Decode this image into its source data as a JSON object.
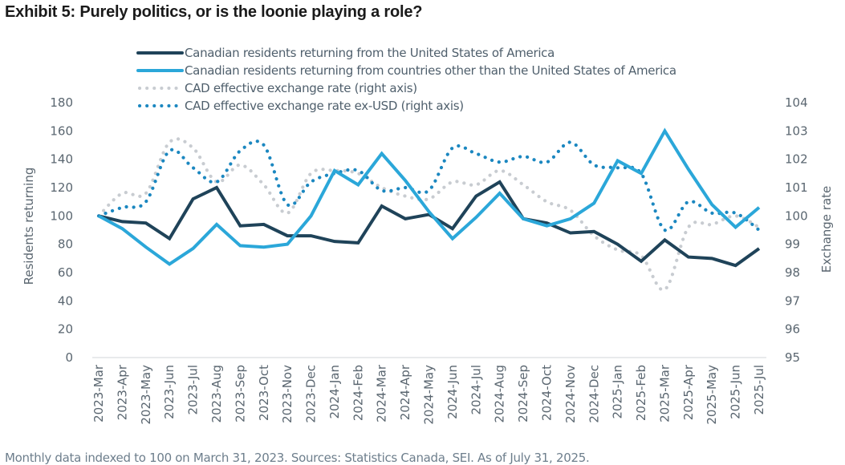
{
  "title": "Exhibit 5: Purely politics, or is the loonie playing a role?",
  "footer": "Monthly data indexed to 100 on March 31, 2023. Sources: Statistics Canada, SEI. As of July 31, 2025.",
  "chart_data": {
    "type": "line",
    "title": "Exhibit 5: Purely politics, or is the loonie playing a role?",
    "xlabel": "",
    "ylabel": "Residents returning",
    "y2label": "Exchange rate",
    "ylim": [
      0,
      180
    ],
    "y2lim": [
      95,
      104
    ],
    "yticks": [
      "0",
      "20",
      "40",
      "60",
      "80",
      "100",
      "120",
      "140",
      "160",
      "180"
    ],
    "y2ticks": [
      "95",
      "96",
      "97",
      "98",
      "99",
      "100",
      "101",
      "102",
      "103",
      "104"
    ],
    "grid": false,
    "legend_position": "top",
    "categories": [
      "2023-Mar",
      "2023-Apr",
      "2023-May",
      "2023-Jun",
      "2023-Jul",
      "2023-Aug",
      "2023-Sep",
      "2023-Oct",
      "2023-Nov",
      "2023-Dec",
      "2024-Jan",
      "2024-Feb",
      "2024-Mar",
      "2024-Apr",
      "2024-May",
      "2024-Jun",
      "2024-Jul",
      "2024-Aug",
      "2024-Sep",
      "2024-Oct",
      "2024-Nov",
      "2024-Dec",
      "2025-Jan",
      "2025-Feb",
      "2025-Mar",
      "2025-Apr",
      "2025-May",
      "2025-Jun",
      "2025-Jul"
    ],
    "series": [
      {
        "name": "Canadian residents returning from the United States of America",
        "axis": "left",
        "style": "solid",
        "color": "#1f4359",
        "values": [
          100,
          96,
          95,
          84,
          112,
          120,
          93,
          94,
          86,
          86,
          82,
          81,
          107,
          98,
          101,
          91,
          114,
          124,
          98,
          95,
          88,
          89,
          80,
          68,
          83,
          71,
          70,
          65,
          77
        ]
      },
      {
        "name": "Canadian residents returning from countries other than the United States of America",
        "axis": "left",
        "style": "solid",
        "color": "#2ba7d9",
        "values": [
          100,
          91,
          78,
          66,
          77,
          94,
          79,
          78,
          80,
          100,
          132,
          122,
          144,
          125,
          103,
          84,
          99,
          116,
          98,
          93,
          98,
          109,
          139,
          130,
          160,
          133,
          108,
          92,
          106
        ]
      },
      {
        "name": "CAD effective exchange rate (right axis)",
        "axis": "right",
        "style": "dotted",
        "color": "#c8ccd1",
        "values": [
          100,
          100.8,
          100.8,
          102.6,
          102.4,
          101.2,
          101.8,
          101.1,
          100.1,
          101.5,
          101.6,
          101.5,
          101.0,
          100.7,
          100.6,
          101.2,
          101.1,
          101.6,
          101.1,
          100.5,
          100.2,
          99.3,
          98.8,
          98.6,
          97.4,
          99.6,
          99.7,
          100.0,
          99.6
        ]
      },
      {
        "name": "CAD effective exchange rate ex-USD (right axis)",
        "axis": "right",
        "style": "dotted",
        "color": "#1b87c0",
        "values": [
          100,
          100.3,
          100.5,
          102.3,
          101.7,
          101.2,
          102.3,
          102.5,
          100.4,
          101.2,
          101.5,
          101.6,
          100.9,
          101.0,
          100.9,
          102.4,
          102.2,
          101.9,
          102.1,
          101.9,
          102.6,
          101.8,
          101.7,
          101.5,
          99.5,
          100.5,
          100.1,
          100.1,
          99.5
        ]
      }
    ]
  }
}
